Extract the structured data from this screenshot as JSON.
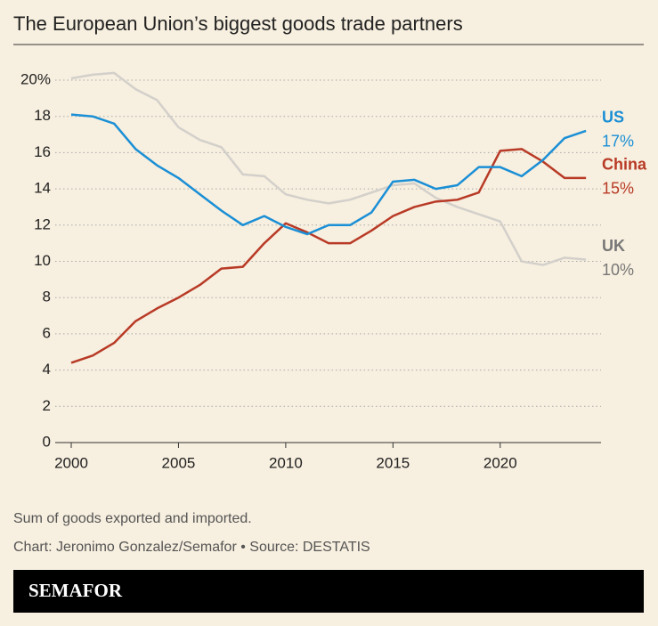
{
  "chart_data": {
    "type": "line",
    "title": "The European Union’s biggest goods trade partners",
    "note": "Sum of goods exported and imported.",
    "credit": "Chart: Jeronimo Gonzalez/Semafor • Source: DESTATIS",
    "brand": "SEMAFOR",
    "x": [
      2000,
      2001,
      2002,
      2003,
      2004,
      2005,
      2006,
      2007,
      2008,
      2009,
      2010,
      2011,
      2012,
      2013,
      2014,
      2015,
      2016,
      2017,
      2018,
      2019,
      2020,
      2021,
      2022,
      2023,
      2024
    ],
    "series": [
      {
        "name": "UK",
        "color": "#d3d0cb",
        "label_color": "#777777",
        "end_label": "10%",
        "values": [
          20.1,
          20.3,
          20.4,
          19.5,
          18.9,
          17.4,
          16.7,
          16.3,
          14.8,
          14.7,
          13.7,
          13.4,
          13.2,
          13.4,
          13.8,
          14.2,
          14.3,
          13.5,
          13.0,
          12.6,
          12.2,
          10.0,
          9.8,
          10.2,
          10.1
        ]
      },
      {
        "name": "China",
        "color": "#b83a26",
        "label_color": "#b83a26",
        "end_label": "15%",
        "values": [
          4.4,
          4.8,
          5.5,
          6.7,
          7.4,
          8.0,
          8.7,
          9.6,
          9.7,
          11.0,
          12.1,
          11.6,
          11.0,
          11.0,
          11.7,
          12.5,
          13.0,
          13.3,
          13.4,
          13.8,
          16.1,
          16.2,
          15.5,
          14.6,
          14.6
        ]
      },
      {
        "name": "US",
        "color": "#1a8fd6",
        "label_color": "#1a8fd6",
        "end_label": "17%",
        "values": [
          18.1,
          18.0,
          17.6,
          16.2,
          15.3,
          14.6,
          13.7,
          12.8,
          12.0,
          12.5,
          11.9,
          11.5,
          12.0,
          12.0,
          12.7,
          14.4,
          14.5,
          14.0,
          14.2,
          15.2,
          15.2,
          14.7,
          15.6,
          16.8,
          17.2
        ]
      }
    ],
    "xlim": [
      2000,
      2024.7
    ],
    "xticks": [
      2000,
      2005,
      2010,
      2015,
      2020
    ],
    "ylim": [
      0,
      20
    ],
    "yticks": [
      0,
      2,
      4,
      6,
      8,
      10,
      12,
      14,
      16,
      18,
      {
        "value": 20,
        "label": "20%"
      }
    ],
    "grid": true
  }
}
